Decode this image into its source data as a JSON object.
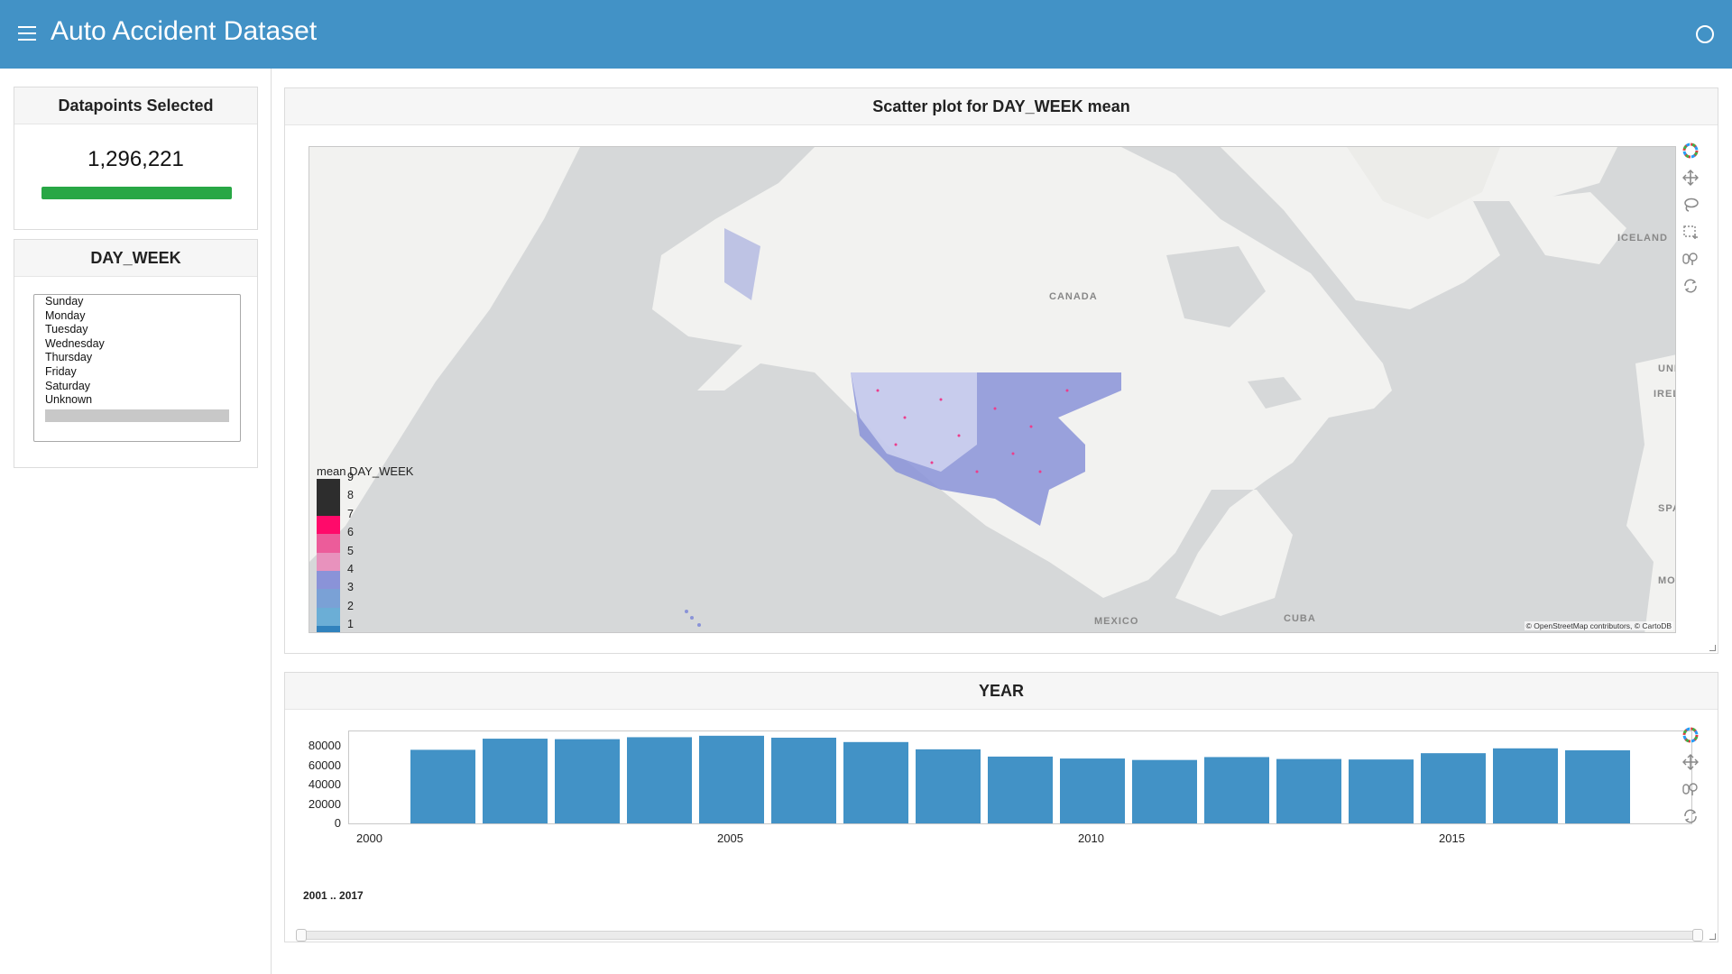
{
  "header": {
    "title": "Auto Accident Dataset",
    "menu_icon": "hamburger-menu-icon",
    "status_icon": "busy-indicator-icon",
    "background_color": "#4292c6"
  },
  "sidebar": {
    "count_card": {
      "title": "Datapoints Selected",
      "value": "1,296,221",
      "progress_fraction": 1.0,
      "progress_color": "#28a745"
    },
    "day_week_card": {
      "title": "DAY_WEEK",
      "options": [
        "Sunday",
        "Monday",
        "Tuesday",
        "Wednesday",
        "Thursday",
        "Friday",
        "Saturday",
        "Unknown"
      ],
      "selected": []
    }
  },
  "scatter_panel": {
    "title": "Scatter plot for DAY_WEEK mean",
    "legend": {
      "title": "mean DAY_WEEK",
      "labels": [
        "9",
        "8",
        "7",
        "6",
        "5",
        "4",
        "3",
        "2",
        "1"
      ],
      "colors": [
        "#2d2d2d",
        "#2d2d2d",
        "#ff0a6a",
        "#ec5c9a",
        "#e892bd",
        "#8a93d8",
        "#7aa1d6",
        "#6baed6",
        "#3182bd"
      ]
    },
    "map_labels": [
      "CANADA",
      "ICELAND",
      "UNITED KINGDOM",
      "IRELAND",
      "SPAIN",
      "MOROCCO",
      "MEXICO",
      "CUBA"
    ],
    "attribution": "© OpenStreetMap contributors, © CartoDB",
    "tools": [
      "color-wheel-icon",
      "pan-icon",
      "lasso-select-icon",
      "box-select-icon",
      "wheel-zoom-icon",
      "reset-icon"
    ]
  },
  "year_panel": {
    "title": "YEAR",
    "tools": [
      "color-wheel-icon",
      "pan-icon",
      "wheel-zoom-icon",
      "reset-icon"
    ],
    "range_label": "2001 .. 2017",
    "range": [
      2001,
      2017
    ]
  },
  "chart_data": {
    "type": "bar",
    "categories": [
      "2001",
      "2002",
      "2003",
      "2004",
      "2005",
      "2006",
      "2007",
      "2008",
      "2009",
      "2010",
      "2011",
      "2012",
      "2013",
      "2014",
      "2015",
      "2016",
      "2017"
    ],
    "values": [
      76000,
      87500,
      87000,
      89000,
      90500,
      88500,
      84000,
      76500,
      69000,
      67000,
      65500,
      68500,
      66500,
      66000,
      72500,
      77500,
      75500
    ],
    "color": "#4292c6",
    "x_ticks": [
      "2000",
      "2005",
      "2010",
      "2015"
    ],
    "y_ticks": [
      "80000",
      "60000",
      "40000",
      "20000",
      "0"
    ],
    "xlim": [
      1999.7,
      2018.3
    ],
    "ylim": [
      0,
      95000
    ],
    "title": "",
    "xlabel": "",
    "ylabel": ""
  }
}
